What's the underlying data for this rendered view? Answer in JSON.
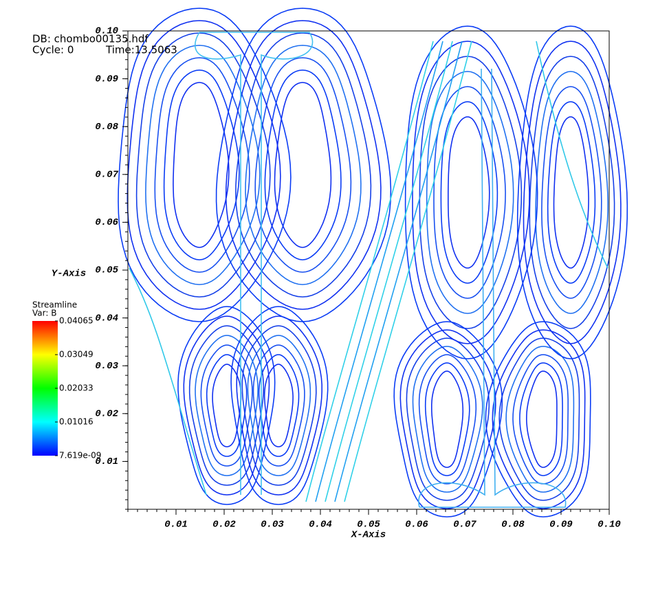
{
  "header": {
    "database": "DB: chombo00135.hdf",
    "cycle": "Cycle: 0",
    "time": "Time:13.5063"
  },
  "chart_data": {
    "type": "streamline",
    "x_label": "X-Axis",
    "y_label": "Y-Axis",
    "xlim": [
      0,
      0.1
    ],
    "ylim": [
      0,
      0.1
    ],
    "xticks": [
      0.01,
      0.02,
      0.03,
      0.04,
      0.05,
      0.06,
      0.07,
      0.08,
      0.09,
      {
        "value": 0.1,
        "label": "0.10"
      }
    ],
    "yticks": [
      0.01,
      0.02,
      0.03,
      0.04,
      0.05,
      0.06,
      0.07,
      0.08,
      0.09,
      {
        "value": 0.1,
        "label": "0.10"
      }
    ],
    "colorbar": {
      "title": "Streamline",
      "variable": "Var: B",
      "colormap": [
        "#0000ff",
        "#00ffff",
        "#00ff00",
        "#ffff00",
        "#ff0000"
      ],
      "ticks": [
        {
          "value": 7.619e-09,
          "label": "7.619e-09"
        },
        0.01016,
        0.02033,
        0.03049,
        0.04065
      ]
    }
  }
}
